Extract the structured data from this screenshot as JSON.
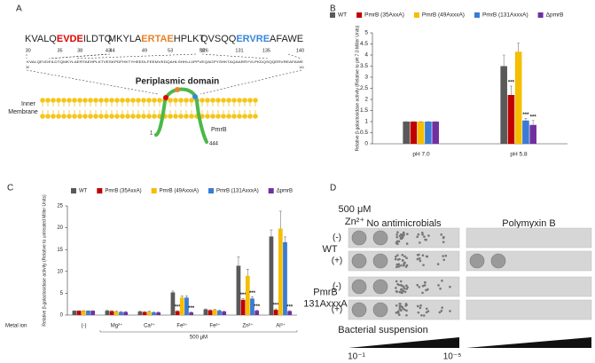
{
  "panel_a": {
    "label": "A",
    "motifs": [
      {
        "left": "KVALQ",
        "mid": "EVDE",
        "right": "ILDTQ",
        "numbers": [
          "30",
          "35",
          "38",
          "43"
        ]
      },
      {
        "left": "MKYLA",
        "mid": "ERTAE",
        "right": "HPLKT",
        "numbers": [
          "44",
          "49",
          "53",
          "58"
        ]
      },
      {
        "left": "QVSQQ",
        "mid": "ERVRE",
        "right": "AFAWE",
        "numbers": [
          "126",
          "131",
          "135",
          "140"
        ]
      }
    ],
    "sequence": "KVALQEVDEILDTQMKYLAERTAEHPLKTVESKPDFHKTYHEEDLFEEMVKDQAHLSHHLLVPPVEQAGPYSHKTAQAARRYVLPKDQSQQERVREAFAWE",
    "sequence_start": "30",
    "sequence_end": "141",
    "domain": "Periplasmic domain",
    "membrane": [
      "Inner",
      "Membrane"
    ],
    "n_term": "1",
    "protein": "PmrB",
    "c_term": "444"
  },
  "chart_data": [
    {
      "panel": "B",
      "type": "bar",
      "y_label": "Relative β-galactosidase activity (Relative to pH 7.0 Miller Units)",
      "categories": [
        "pH 7.0",
        "pH 5.8"
      ],
      "series": [
        {
          "name": "WT",
          "color": "#595959",
          "values": [
            1,
            3.5
          ],
          "errors": [
            0,
            0.5
          ],
          "significance": [
            null,
            null
          ]
        },
        {
          "name": "PmrB (35AxxA)",
          "color": "#c00000",
          "values": [
            1,
            2.2
          ],
          "errors": [
            0,
            0.4
          ],
          "significance": [
            null,
            "***"
          ]
        },
        {
          "name": "PmrB (49AxxxA)",
          "color": "#f5be00",
          "values": [
            1,
            4.15
          ],
          "errors": [
            0,
            0.4
          ],
          "significance": [
            null,
            null
          ]
        },
        {
          "name": "PmrB (131AxxxA)",
          "color": "#3a7bd5",
          "values": [
            1,
            1.05
          ],
          "errors": [
            0,
            0.1
          ],
          "significance": [
            null,
            "***"
          ]
        },
        {
          "name": "ΔpmrB",
          "color": "#7030a0",
          "values": [
            1,
            0.85
          ],
          "errors": [
            0,
            0.2
          ],
          "significance": [
            null,
            "***"
          ]
        }
      ],
      "ylim": [
        0,
        5
      ],
      "yticks": [
        0,
        0.5,
        1,
        1.5,
        2,
        2.5,
        3,
        3.5,
        4,
        4.5,
        5
      ],
      "grid": false,
      "legend": "top"
    },
    {
      "panel": "C",
      "type": "bar",
      "y_label": "Relative β-galactosidase activity (Relative to untreated Miller Units)",
      "x_label": "Metal ion",
      "group_label": "500 μM",
      "categories": [
        "(-)",
        "Mg²⁺",
        "Ca²⁺",
        "Fe³⁺",
        "Fe²⁺",
        "Zn²⁺",
        "Al³⁺"
      ],
      "series": [
        {
          "name": "WT",
          "color": "#595959",
          "values": [
            1,
            1,
            0.8,
            5.2,
            1.3,
            11.3,
            18
          ],
          "errors": [
            0,
            0.1,
            0.1,
            0.3,
            0.1,
            2,
            1.5
          ],
          "significance": [
            null,
            null,
            null,
            null,
            null,
            null,
            null
          ]
        },
        {
          "name": "PmrB (35AxxA)",
          "color": "#c00000",
          "values": [
            1,
            0.9,
            0.7,
            0.9,
            1.1,
            3.5,
            1.2
          ],
          "errors": [
            0,
            0.1,
            0.1,
            0.1,
            0.1,
            0.3,
            0.2
          ],
          "significance": [
            null,
            null,
            null,
            "***",
            null,
            "***",
            "***"
          ]
        },
        {
          "name": "PmrB (49AxxxA)",
          "color": "#f5be00",
          "values": [
            1,
            0.8,
            0.8,
            4,
            1.2,
            9,
            19.8
          ],
          "errors": [
            0,
            0.1,
            0.1,
            0.4,
            0.1,
            1.5,
            4
          ],
          "significance": [
            null,
            null,
            null,
            null,
            null,
            null,
            null
          ]
        },
        {
          "name": "PmrB (131AxxxA)",
          "color": "#3a7bd5",
          "values": [
            1,
            0.7,
            0.6,
            4,
            1,
            3.8,
            16.7
          ],
          "errors": [
            0,
            0.1,
            0.1,
            0.4,
            0.1,
            0.4,
            1.2
          ],
          "significance": [
            null,
            null,
            null,
            null,
            null,
            "***",
            null
          ]
        },
        {
          "name": "ΔpmrB",
          "color": "#7030a0",
          "values": [
            1,
            0.7,
            0.6,
            0.6,
            0.8,
            1,
            0.9
          ],
          "errors": [
            0,
            0.1,
            0.1,
            0.1,
            0.1,
            0.1,
            0.1
          ],
          "significance": [
            null,
            null,
            null,
            "***",
            null,
            "***",
            "***"
          ]
        }
      ],
      "ylim": [
        0,
        25
      ],
      "yticks": [
        0,
        5,
        10,
        15,
        20,
        25
      ],
      "grid": false,
      "legend": "top"
    }
  ],
  "panel_b_label": "B",
  "panel_c_label": "C",
  "panel_d": {
    "label": "D",
    "conc": "500 μM",
    "ion": "Zn²⁺",
    "conditions": [
      "No antimicrobials",
      "Polymyxin B"
    ],
    "strains": [
      {
        "name": [
          "WT"
        ]
      },
      {
        "name": [
          "PmrB",
          "131AxxxA"
        ]
      }
    ],
    "treatments": [
      "(-)",
      "(+)"
    ],
    "suspension": "Bacterial suspension",
    "dilution_start": "10⁻¹",
    "dilution_end": "10⁻⁵"
  }
}
